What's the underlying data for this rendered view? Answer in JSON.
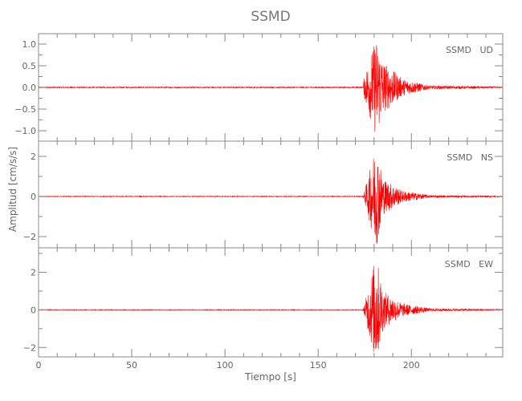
{
  "chart_data": {
    "type": "line",
    "title": "SSMD",
    "xlabel": "Tiempo [s]",
    "ylabel": "Amplitud [cm/s/s]",
    "xlim": [
      0,
      249
    ],
    "xticks": [
      0,
      50,
      100,
      150,
      200
    ],
    "grid": false,
    "line_color": "#ff0000",
    "axis_color": "#888888",
    "panels": [
      {
        "label": "SSMD   UD",
        "ylim": [
          -1.24,
          1.24
        ],
        "yticks": [
          1.0,
          0.5,
          0.0,
          -0.5,
          -1.0
        ],
        "ytick_labels": [
          "1.0",
          "0.5",
          "0.0",
          "−0.5",
          "−1.0"
        ],
        "envelope": {
          "t": [
            0,
            174,
            175,
            181,
            185,
            195,
            210,
            249
          ],
          "amp": [
            0.02,
            0.02,
            0.3,
            1.15,
            0.6,
            0.2,
            0.04,
            0.02
          ]
        }
      },
      {
        "label": "SSMD   NS",
        "ylim": [
          -2.56,
          2.76
        ],
        "yticks": [
          2,
          0,
          -2
        ],
        "ytick_labels": [
          "2",
          "0",
          "−2"
        ],
        "envelope": {
          "t": [
            0,
            174,
            175,
            181,
            185,
            195,
            210,
            249
          ],
          "amp": [
            0.03,
            0.03,
            0.3,
            2.6,
            0.9,
            0.3,
            0.06,
            0.03
          ]
        }
      },
      {
        "label": "SSMD   EW",
        "ylim": [
          -2.5,
          3.3
        ],
        "yticks": [
          2,
          0,
          -2
        ],
        "ytick_labels": [
          "2",
          "0",
          "−2"
        ],
        "envelope": {
          "t": [
            0,
            174,
            175,
            181,
            185,
            195,
            210,
            249
          ],
          "amp": [
            0.03,
            0.03,
            0.35,
            3.0,
            1.0,
            0.35,
            0.08,
            0.03
          ]
        }
      }
    ]
  }
}
